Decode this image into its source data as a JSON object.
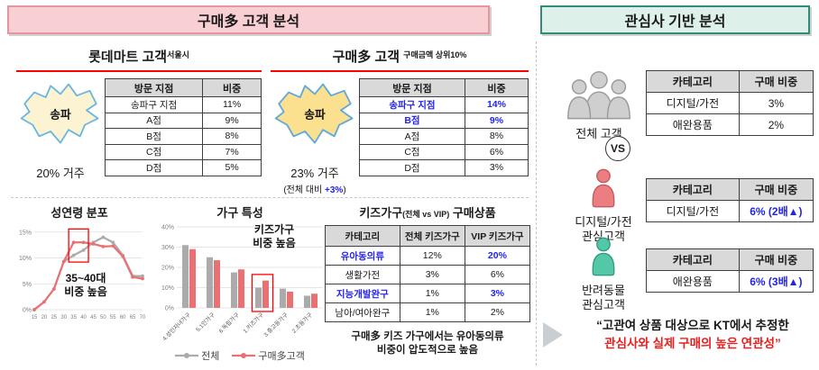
{
  "headers": {
    "left": "구매多 고객 분석",
    "right": "관심사 기반 분석"
  },
  "colors": {
    "accent_blue": "#2222F2",
    "underline_red": "#FF0000",
    "chart_gray": "#ABABAB",
    "chart_red": "#E87174",
    "header_left_bg": "#F8CFD2",
    "header_left_border": "#E6949E",
    "header_right_bg": "#DDF1EA",
    "header_right_border": "#2E8C77",
    "quote_red": "#E8201F",
    "map1_fill": "#FCF3D3",
    "map2_fill": "#FAE08F",
    "map_stroke": "#6CB5E2",
    "person_red": "#EC7D81",
    "person_teal": "#54C7A9",
    "group_gray": "#CFCFCF"
  },
  "left": {
    "panel_lotte": {
      "title": "롯데마트 고객",
      "title_sup": "서울시",
      "map_label": "송파",
      "caption": "20% 거주",
      "table": {
        "headers": [
          "방문 지점",
          "비중"
        ],
        "rows": [
          [
            {
              "t": "송파구 지점"
            },
            {
              "t": "11%"
            }
          ],
          [
            {
              "t": "A점"
            },
            {
              "t": "9%"
            }
          ],
          [
            {
              "t": "B점"
            },
            {
              "t": "8%"
            }
          ],
          [
            {
              "t": "C점"
            },
            {
              "t": "7%"
            }
          ],
          [
            {
              "t": "D점"
            },
            {
              "t": "5%"
            }
          ]
        ]
      }
    },
    "panel_gumae": {
      "title": "구매多 고객",
      "title_sup": "구매금액 상위10%",
      "map_label": "송파",
      "caption": "23% 거주",
      "caption_sub_prefix": "(전체 대비 ",
      "caption_sub_value": "+3%",
      "caption_sub_suffix": ")",
      "table": {
        "headers": [
          "방문 지점",
          "비중"
        ],
        "rows": [
          [
            {
              "t": "송파구 지점",
              "b": true
            },
            {
              "t": "14%",
              "b": true
            }
          ],
          [
            {
              "t": "B점",
              "b": true
            },
            {
              "t": "9%",
              "b": true
            }
          ],
          [
            {
              "t": "A점"
            },
            {
              "t": "8%"
            }
          ],
          [
            {
              "t": "C점"
            },
            {
              "t": "6%"
            }
          ],
          [
            {
              "t": "D점"
            },
            {
              "t": "3%"
            }
          ]
        ]
      }
    },
    "kids": {
      "title_main": "키즈가구",
      "title_sub": "(전체 vs VIP)",
      "title_tail": " 구매상품",
      "table": {
        "headers": [
          "카테고리",
          "전체 키즈가구",
          "VIP 키즈가구"
        ],
        "rows": [
          [
            {
              "t": "유아동의류",
              "b": true
            },
            {
              "t": "12%"
            },
            {
              "t": "20%",
              "b": true
            }
          ],
          [
            {
              "t": "생활가전"
            },
            {
              "t": "3%"
            },
            {
              "t": "6%"
            }
          ],
          [
            {
              "t": "지능개발완구",
              "b": true
            },
            {
              "t": "1%"
            },
            {
              "t": "3%",
              "b": true
            }
          ],
          [
            {
              "t": "남아/여아완구"
            },
            {
              "t": "1%"
            },
            {
              "t": "2%"
            }
          ]
        ]
      },
      "note_line1": "구매多 키즈 가구에서는 유아동의류",
      "note_line2": "비중이 압도적으로 높음"
    }
  },
  "chart_data": [
    {
      "type": "line",
      "title": "성연령 분포",
      "x": [
        15,
        20,
        25,
        30,
        35,
        40,
        45,
        50,
        55,
        60,
        65,
        70
      ],
      "series": [
        {
          "name": "전체",
          "color": "#ABABAB",
          "values": [
            0,
            1.5,
            4,
            9.3,
            10.5,
            11.5,
            13,
            14,
            13,
            10.5,
            6.5,
            6.5
          ]
        },
        {
          "name": "구매多고객",
          "color": "#E87174",
          "values": [
            0,
            1.5,
            4,
            9.3,
            13,
            13,
            12.7,
            12.2,
            12.3,
            10.3,
            6.3,
            6
          ]
        }
      ],
      "yticks": [
        0,
        5,
        10,
        15
      ],
      "ylim": [
        0,
        16
      ],
      "grid": true,
      "annotation": "35~40대 비중 높음",
      "highlight_x": [
        35,
        40
      ]
    },
    {
      "type": "bar",
      "title": "가구 특성",
      "categories": [
        "4.성인자녀가구",
        "5.1인가구",
        "6.독립가구",
        "1.키즈가구",
        "3.중고등가구",
        "2.초등가구"
      ],
      "series": [
        {
          "name": "전체",
          "color": "#ABABAB",
          "values": [
            31,
            25,
            17.5,
            10,
            9.5,
            6
          ]
        },
        {
          "name": "구매多고객",
          "color": "#E87174",
          "values": [
            29,
            23.5,
            19,
            13.5,
            8,
            7
          ]
        }
      ],
      "yticks": [
        0,
        10,
        20,
        30,
        40
      ],
      "ylim": [
        0,
        40
      ],
      "grid": true,
      "annotation": "키즈가구 비중 높음",
      "highlight_category": "1.키즈가구",
      "legend_position": "bottom"
    }
  ],
  "annotations": {
    "line_chart": {
      "line1": "35~40대",
      "line2": "비중 높음"
    },
    "bar_chart": {
      "line1": "키즈가구",
      "line2": "비중 높음"
    }
  },
  "right": {
    "block_all": {
      "label": "전체 고객",
      "table": {
        "headers": [
          "카테고리",
          "구매 비중"
        ],
        "rows": [
          [
            {
              "t": "디지털/가전"
            },
            {
              "t": "3%"
            }
          ],
          [
            {
              "t": "애완용품"
            },
            {
              "t": "2%"
            }
          ]
        ]
      }
    },
    "vs": "VS",
    "block_digital": {
      "label_line1": "디지털/가전",
      "label_line2": "관심고객",
      "table": {
        "headers": [
          "카테고리",
          "구매 비중"
        ],
        "rows": [
          [
            {
              "t": "디지털/가전"
            },
            {
              "t": "6% (2배▲)",
              "b": true
            }
          ]
        ]
      }
    },
    "block_pet": {
      "label_line1": "반려동물",
      "label_line2": "관심고객",
      "table": {
        "headers": [
          "카테고리",
          "구매 비중"
        ],
        "rows": [
          [
            {
              "t": "애완용품"
            },
            {
              "t": "6% (3배▲)",
              "b": true
            }
          ]
        ]
      }
    },
    "quote_line1": "“고관여 상품 대상으로 KT에서 추정한",
    "quote_line2": "관심사와 실제 구매의 높은 연관성”"
  }
}
